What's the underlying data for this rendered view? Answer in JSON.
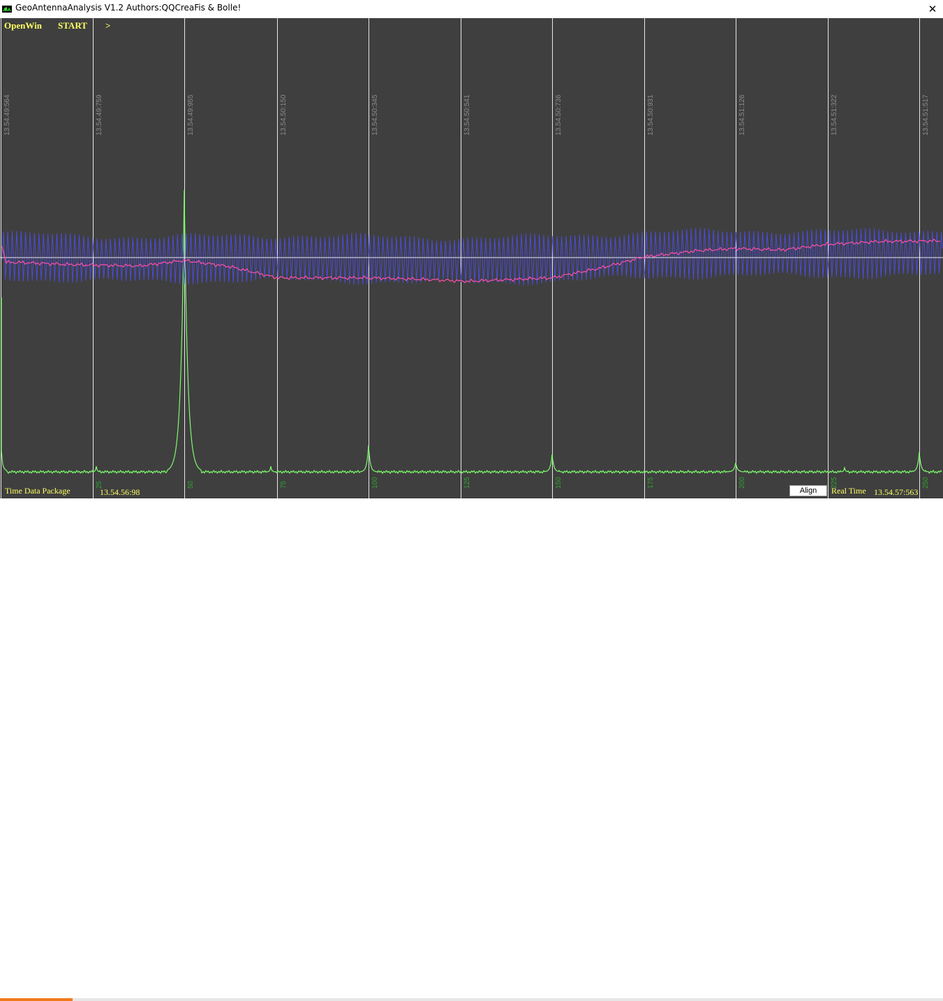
{
  "window": {
    "title": "GeoAntennaAnalysis V1.2 Authors:QQCreaFis & Bolle!",
    "close_label": "✕",
    "app_icon": "oscilloscope-icon"
  },
  "menu": {
    "openwin": "OpenWin",
    "start": "START",
    "next": ">"
  },
  "timestamps": [
    "13.54.49:564",
    "13.54.49:759",
    "13.54.49:955",
    "13.54.50:150",
    "13.54.50:345",
    "13.54.50:541",
    "13.54.50:736",
    "13.54.50:931",
    "13.54.51:126",
    "13.54.51:322",
    "13.54.51:517"
  ],
  "package_labels": [
    "",
    "25",
    "50",
    "75",
    "100",
    "125",
    "150",
    "175",
    "200",
    "225",
    "250"
  ],
  "footer": {
    "left_label": "Time Data Package",
    "left_time": "13.54.56:98",
    "align_label": "Align",
    "right_label": "Real Time",
    "right_time": "13.54.57:563"
  },
  "progress": {
    "fraction": 0.077
  },
  "colors": {
    "background": "#3f3f3f",
    "grid": "#e8e8e8",
    "signal": "#4b4bdc",
    "average": "#ff4fa8",
    "spectrum": "#7dfc6c",
    "text_yellow": "#ffff66",
    "label_grey": "#8c8c8c",
    "label_green": "#2fa32f",
    "progress": "#f07a1a"
  }
}
